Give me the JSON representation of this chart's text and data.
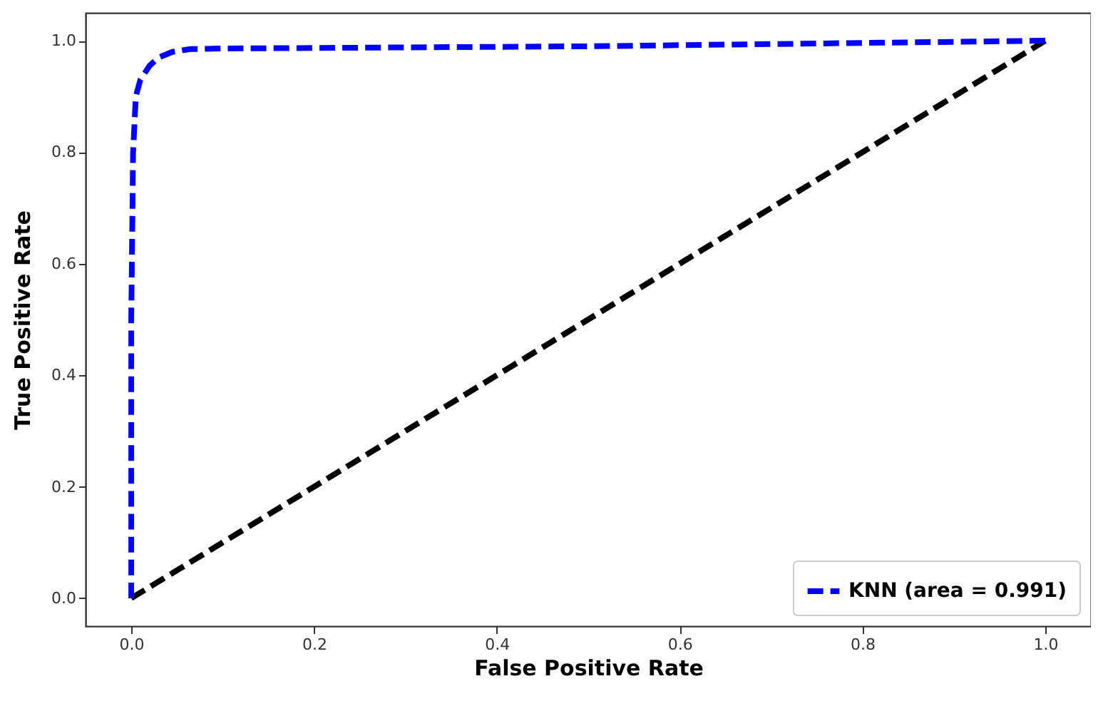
{
  "chart_data": {
    "type": "line",
    "xlabel": "False Positive Rate",
    "ylabel": "True Positive Rate",
    "xlim": [
      -0.05,
      1.05
    ],
    "ylim": [
      -0.05,
      1.05
    ],
    "xticks": [
      {
        "value": 0,
        "label": "0.0"
      },
      {
        "value": 0.2,
        "label": "0.2"
      },
      {
        "value": 0.4,
        "label": "0.4"
      },
      {
        "value": 0.6,
        "label": "0.6"
      },
      {
        "value": 0.8,
        "label": "0.8"
      },
      {
        "value": 1,
        "label": "1.0"
      }
    ],
    "yticks": [
      {
        "value": 0,
        "label": "0.0"
      },
      {
        "value": 0.2,
        "label": "0.2"
      },
      {
        "value": 0.4,
        "label": "0.4"
      },
      {
        "value": 0.6,
        "label": "0.6"
      },
      {
        "value": 0.8,
        "label": "0.8"
      },
      {
        "value": 1,
        "label": "1.0"
      }
    ],
    "legend": "bottom right",
    "line_style": "dashed",
    "marker": "none",
    "series": [
      {
        "name": "KNN (area = 0.991)",
        "color": "#0000ff",
        "x": [
          0,
          0,
          0.002,
          0.005,
          0.01,
          0.02,
          0.03,
          0.045,
          0.065,
          0.1,
          0.5,
          1
        ],
        "values": [
          0,
          0.5,
          0.8,
          0.9,
          0.93,
          0.955,
          0.97,
          0.98,
          0.985,
          0.986,
          0.99,
          1
        ]
      },
      {
        "color": "#000000",
        "x": [
          0,
          1
        ],
        "values": [
          0,
          1
        ]
      }
    ]
  }
}
